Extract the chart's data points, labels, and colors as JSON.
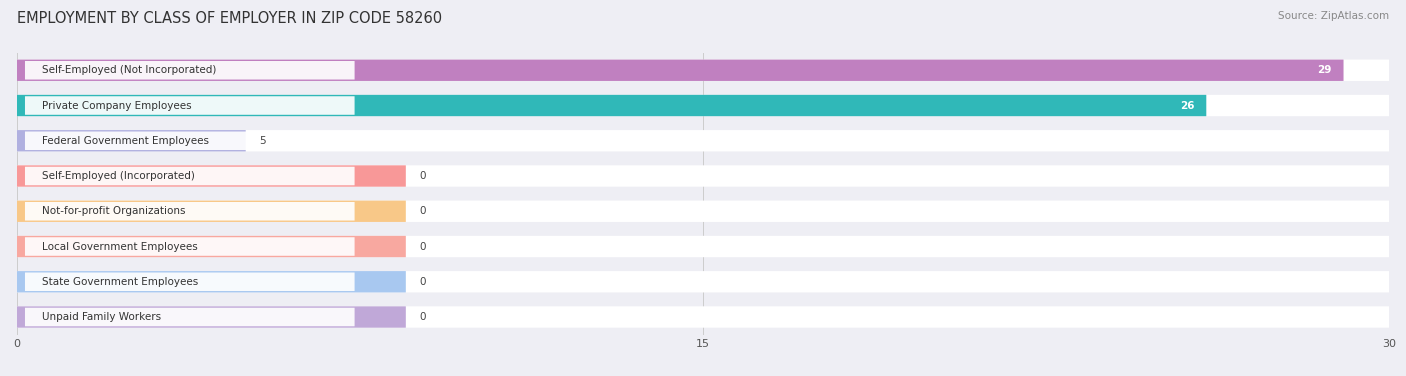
{
  "title": "EMPLOYMENT BY CLASS OF EMPLOYER IN ZIP CODE 58260",
  "source": "Source: ZipAtlas.com",
  "categories": [
    "Self-Employed (Not Incorporated)",
    "Private Company Employees",
    "Federal Government Employees",
    "Self-Employed (Incorporated)",
    "Not-for-profit Organizations",
    "Local Government Employees",
    "State Government Employees",
    "Unpaid Family Workers"
  ],
  "values": [
    29,
    26,
    5,
    0,
    0,
    0,
    0,
    0
  ],
  "bar_colors": [
    "#c080c0",
    "#30b8b8",
    "#b0b0e0",
    "#f89898",
    "#f8c888",
    "#f8a8a0",
    "#a8c8f0",
    "#c0a8d8"
  ],
  "xlim": [
    0,
    30
  ],
  "xticks": [
    0,
    15,
    30
  ],
  "background_color": "#eeeef4",
  "title_fontsize": 10.5,
  "source_fontsize": 7.5,
  "bar_label_fontsize": 7.5,
  "value_fontsize": 7.5,
  "min_bar_width": 8.5
}
